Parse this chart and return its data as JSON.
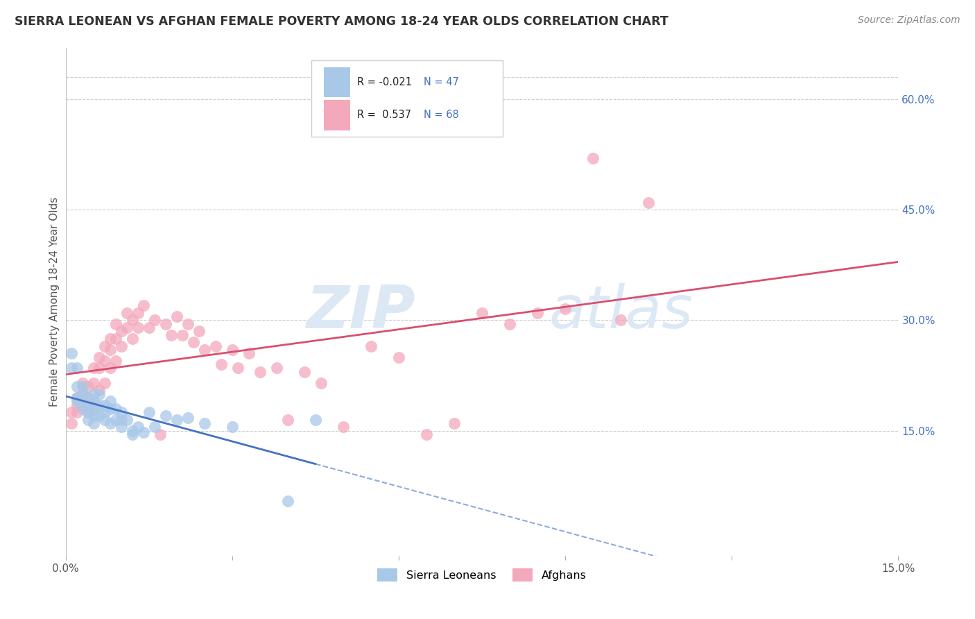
{
  "title": "SIERRA LEONEAN VS AFGHAN FEMALE POVERTY AMONG 18-24 YEAR OLDS CORRELATION CHART",
  "source": "Source: ZipAtlas.com",
  "ylabel": "Female Poverty Among 18-24 Year Olds",
  "xlim": [
    0.0,
    0.15
  ],
  "ylim": [
    -0.02,
    0.67
  ],
  "y_ticks_right": [
    0.15,
    0.3,
    0.45,
    0.6
  ],
  "y_tick_labels_right": [
    "15.0%",
    "30.0%",
    "45.0%",
    "60.0%"
  ],
  "legend_r_sl": "-0.021",
  "legend_n_sl": "47",
  "legend_r_af": "0.537",
  "legend_n_af": "68",
  "sl_color": "#a8c8e8",
  "af_color": "#f4a8bb",
  "sl_line_color": "#4472c4",
  "af_line_color": "#d94f6e",
  "watermark_zip": "ZIP",
  "watermark_atlas": "atlas",
  "background_color": "#ffffff",
  "grid_color": "#cccccc",
  "sierra_leonean_x": [
    0.001,
    0.001,
    0.002,
    0.002,
    0.002,
    0.002,
    0.003,
    0.003,
    0.003,
    0.003,
    0.004,
    0.004,
    0.004,
    0.004,
    0.005,
    0.005,
    0.005,
    0.005,
    0.005,
    0.006,
    0.006,
    0.006,
    0.007,
    0.007,
    0.007,
    0.008,
    0.008,
    0.008,
    0.009,
    0.009,
    0.01,
    0.01,
    0.01,
    0.011,
    0.012,
    0.012,
    0.013,
    0.014,
    0.015,
    0.016,
    0.018,
    0.02,
    0.022,
    0.025,
    0.03,
    0.04,
    0.045
  ],
  "sierra_leonean_y": [
    0.255,
    0.235,
    0.235,
    0.21,
    0.195,
    0.19,
    0.21,
    0.2,
    0.19,
    0.18,
    0.195,
    0.185,
    0.175,
    0.165,
    0.2,
    0.19,
    0.18,
    0.17,
    0.16,
    0.2,
    0.185,
    0.17,
    0.185,
    0.175,
    0.165,
    0.19,
    0.18,
    0.16,
    0.18,
    0.165,
    0.175,
    0.165,
    0.155,
    0.165,
    0.15,
    0.145,
    0.155,
    0.148,
    0.175,
    0.155,
    0.17,
    0.165,
    0.168,
    0.16,
    0.155,
    0.055,
    0.165
  ],
  "afghan_x": [
    0.001,
    0.001,
    0.002,
    0.002,
    0.002,
    0.003,
    0.003,
    0.003,
    0.004,
    0.004,
    0.004,
    0.005,
    0.005,
    0.005,
    0.006,
    0.006,
    0.006,
    0.007,
    0.007,
    0.007,
    0.008,
    0.008,
    0.008,
    0.009,
    0.009,
    0.009,
    0.01,
    0.01,
    0.011,
    0.011,
    0.012,
    0.012,
    0.013,
    0.013,
    0.014,
    0.015,
    0.016,
    0.017,
    0.018,
    0.019,
    0.02,
    0.021,
    0.022,
    0.023,
    0.024,
    0.025,
    0.027,
    0.028,
    0.03,
    0.031,
    0.033,
    0.035,
    0.038,
    0.04,
    0.043,
    0.046,
    0.05,
    0.055,
    0.06,
    0.065,
    0.07,
    0.075,
    0.08,
    0.085,
    0.09,
    0.095,
    0.1,
    0.105
  ],
  "afghan_y": [
    0.175,
    0.16,
    0.195,
    0.185,
    0.175,
    0.215,
    0.2,
    0.185,
    0.21,
    0.195,
    0.175,
    0.235,
    0.215,
    0.185,
    0.25,
    0.235,
    0.205,
    0.265,
    0.245,
    0.215,
    0.275,
    0.26,
    0.235,
    0.295,
    0.275,
    0.245,
    0.285,
    0.265,
    0.31,
    0.29,
    0.3,
    0.275,
    0.31,
    0.29,
    0.32,
    0.29,
    0.3,
    0.145,
    0.295,
    0.28,
    0.305,
    0.28,
    0.295,
    0.27,
    0.285,
    0.26,
    0.265,
    0.24,
    0.26,
    0.235,
    0.255,
    0.23,
    0.235,
    0.165,
    0.23,
    0.215,
    0.155,
    0.265,
    0.25,
    0.145,
    0.16,
    0.31,
    0.295,
    0.31,
    0.315,
    0.52,
    0.3,
    0.46
  ]
}
